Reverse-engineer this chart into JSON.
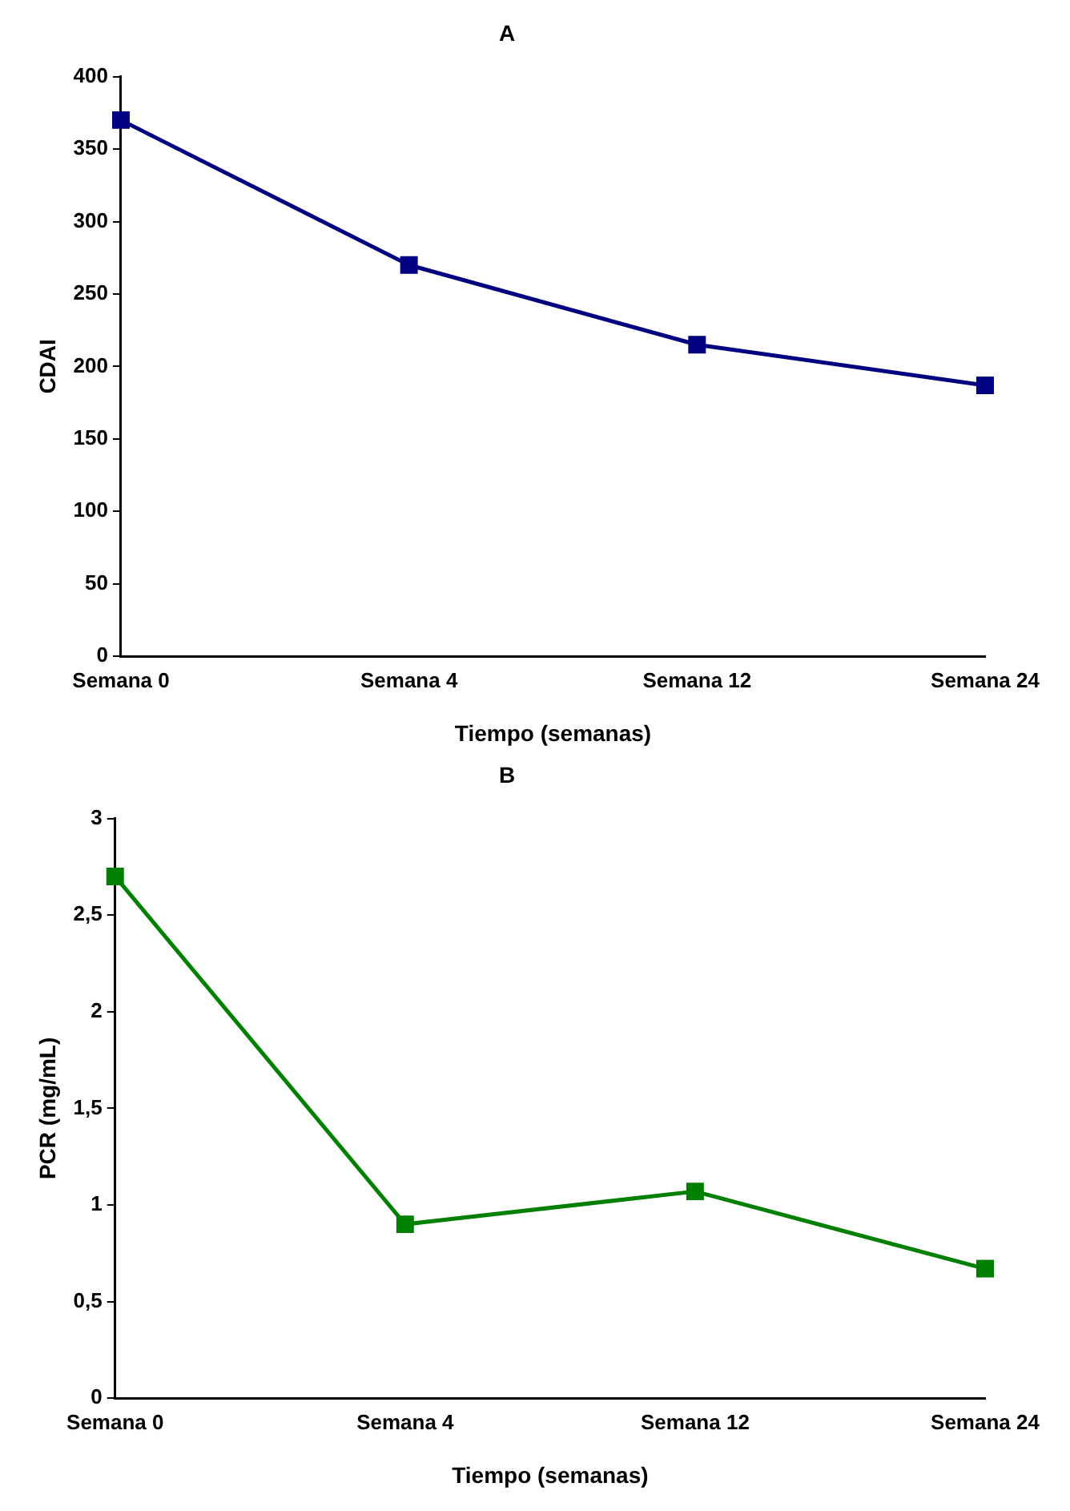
{
  "chart_data": [
    {
      "type": "line",
      "title": "A",
      "xlabel": "Tiempo (semanas)",
      "ylabel": "CDAI",
      "categories": [
        "Semana 0",
        "Semana 4",
        "Semana 12",
        "Semana 24"
      ],
      "series": [
        {
          "color": "#000080",
          "values": [
            370,
            270,
            215,
            187
          ]
        }
      ],
      "ylim": [
        0,
        400
      ],
      "yticks": [
        0,
        50,
        100,
        150,
        200,
        250,
        300,
        350,
        400
      ],
      "grid": false,
      "legend": false,
      "marker": "square",
      "line_style": "solid"
    },
    {
      "type": "line",
      "title": "B",
      "xlabel": "Tiempo (semanas)",
      "ylabel": "PCR (mg/mL)",
      "categories": [
        "Semana 0",
        "Semana 4",
        "Semana 12",
        "Semana 24"
      ],
      "series": [
        {
          "color": "#008000",
          "values": [
            2.7,
            0.9,
            1.07,
            0.67
          ]
        }
      ],
      "ylim": [
        0,
        3
      ],
      "yticks": [
        0,
        {
          "value": 0.5,
          "label": "0,5"
        },
        1,
        {
          "value": 1.5,
          "label": "1,5"
        },
        2,
        {
          "value": 2.5,
          "label": "2,5"
        },
        3
      ],
      "grid": false,
      "legend": false,
      "marker": "square",
      "line_style": "solid"
    }
  ]
}
